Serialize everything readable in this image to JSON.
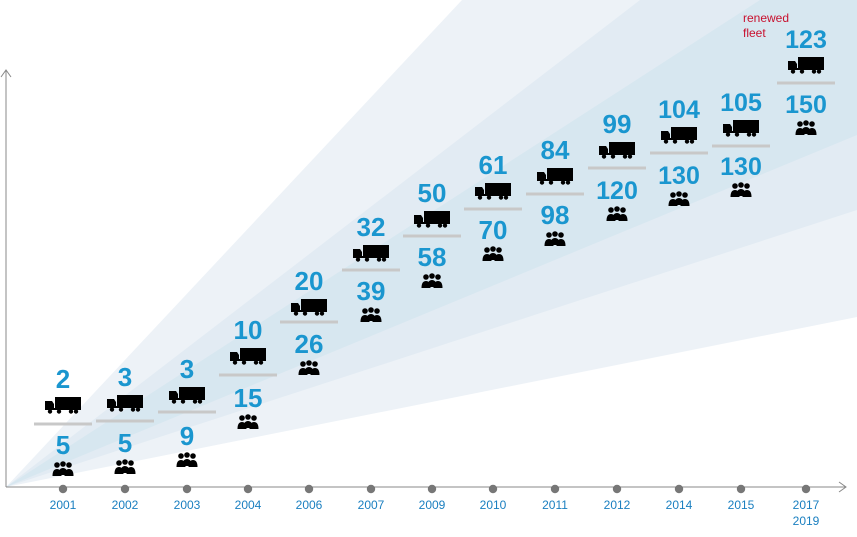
{
  "chart_data": {
    "type": "area",
    "title": "",
    "xlabel": "",
    "ylabel": "",
    "grid": false,
    "legend": "none",
    "categories": [
      "2001",
      "2002",
      "2003",
      "2004",
      "2006",
      "2007",
      "2009",
      "2010",
      "2011",
      "2012",
      "2014",
      "2015",
      "2017\n2019"
    ],
    "series": [
      {
        "key": "trucks",
        "icon": "truck-icon",
        "values": [
          2,
          3,
          3,
          10,
          20,
          32,
          50,
          61,
          84,
          99,
          104,
          105,
          123
        ]
      },
      {
        "key": "people",
        "icon": "people-icon",
        "values": [
          5,
          5,
          9,
          15,
          26,
          39,
          58,
          70,
          98,
          120,
          130,
          130,
          150
        ]
      }
    ],
    "annotations": [
      {
        "category": "2017\n2019",
        "text_lines": [
          "renewed",
          "fleet"
        ]
      }
    ],
    "colors": {
      "value": "#1a96cf",
      "tick": "#1a7fc0",
      "annotation": "#c8102e",
      "band_outer": "#edf2f7",
      "band_mid": "#e2ebf3",
      "band_inner": "#d7e7f0",
      "separator": "#c8c8c8",
      "axis": "#888888",
      "dot": "#777777",
      "icon": "#000000"
    }
  }
}
